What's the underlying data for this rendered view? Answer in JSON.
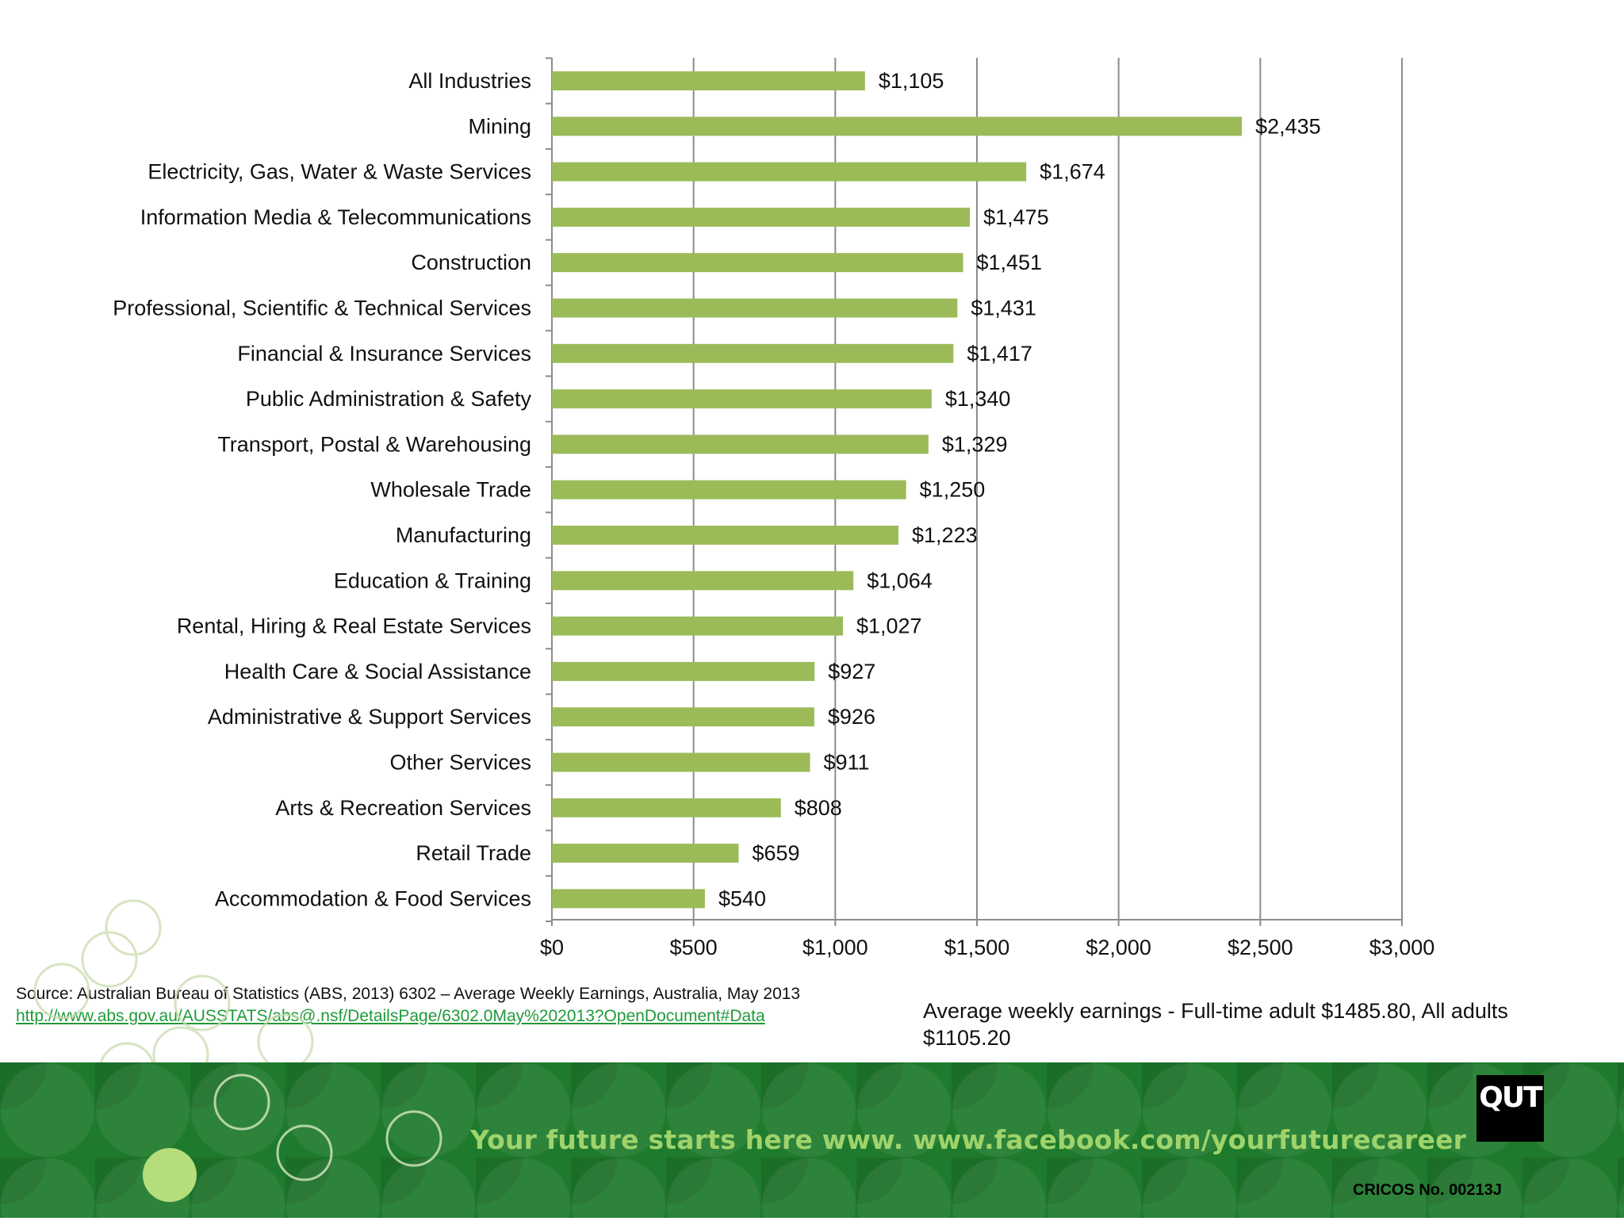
{
  "chart_data": {
    "type": "bar",
    "orientation": "horizontal",
    "categories": [
      "All Industries",
      "Mining",
      "Electricity, Gas, Water & Waste Services",
      "Information Media & Telecommunications",
      "Construction",
      "Professional, Scientific & Technical Services",
      "Financial & Insurance Services",
      "Public Administration & Safety",
      "Transport, Postal & Warehousing",
      "Wholesale Trade",
      "Manufacturing",
      "Education & Training",
      "Rental, Hiring & Real Estate Services",
      "Health Care & Social Assistance",
      "Administrative & Support Services",
      "Other Services",
      "Arts & Recreation Services",
      "Retail Trade",
      "Accommodation & Food Services"
    ],
    "values": [
      1105,
      2435,
      1674,
      1475,
      1451,
      1431,
      1417,
      1340,
      1329,
      1250,
      1223,
      1064,
      1027,
      927,
      926,
      911,
      808,
      659,
      540
    ],
    "value_labels": [
      "$1,105",
      "$2,435",
      "$1,674",
      "$1,475",
      "$1,451",
      "$1,431",
      "$1,417",
      "$1,340",
      "$1,329",
      "$1,250",
      "$1,223",
      "$1,064",
      "$1,027",
      "$927",
      "$926",
      "$911",
      "$808",
      "$659",
      "$540"
    ],
    "xlim": [
      0,
      3000
    ],
    "x_ticks": [
      0,
      500,
      1000,
      1500,
      2000,
      2500,
      3000
    ],
    "x_tick_labels": [
      "$0",
      "$500",
      "$1,000",
      "$1,500",
      "$2,000",
      "$2,500",
      "$3,000"
    ],
    "grid": "vertical",
    "bar_color": "#9bbb59",
    "title": "",
    "xlabel": "",
    "ylabel": ""
  },
  "source": {
    "text": "Source: Australian Bureau of Statistics (ABS, 2013) 6302 – Average Weekly Earnings, Australia, May 2013",
    "link": "http://www.abs.gov.au/AUSSTATS/abs@.nsf/DetailsPage/6302.0May%202013?OpenDocument#Data"
  },
  "note": "Average weekly earnings - Full-time adult $1485.80, All adults $1105.20",
  "footer": {
    "tagline": "Your future starts here www. www.facebook.com/yourfuturecareer",
    "logo": "QUT",
    "cricos": "CRICOS No. 00213J",
    "background_color": "#1e7a2c",
    "tagline_color": "#9fd36b"
  }
}
